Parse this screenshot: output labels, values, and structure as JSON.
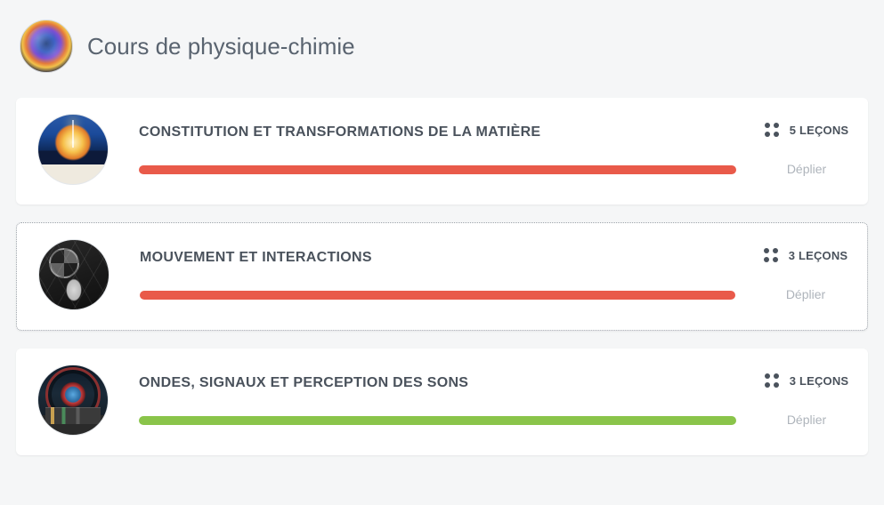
{
  "header": {
    "title": "Cours de physique-chimie"
  },
  "expand_label": "Déplier",
  "lesson_word": "LEÇONS",
  "colors": {
    "progress_red": "#e95a4a",
    "progress_green": "#8ac44a",
    "card_bg": "#ffffff",
    "page_bg": "#f5f6f7",
    "text_primary": "#4a525c",
    "text_muted": "#aeb4bb"
  },
  "cards": [
    {
      "title": "CONSTITUTION ET TRANSFORMATIONS DE LA MATIÈRE",
      "lessons": 5,
      "progress_pct": 100,
      "progress_color": "#e95a4a",
      "selected": false
    },
    {
      "title": "MOUVEMENT ET INTERACTIONS",
      "lessons": 3,
      "progress_pct": 100,
      "progress_color": "#e95a4a",
      "selected": true
    },
    {
      "title": "ONDES, SIGNAUX ET PERCEPTION DES SONS",
      "lessons": 3,
      "progress_pct": 100,
      "progress_color": "#8ac44a",
      "selected": false
    }
  ]
}
